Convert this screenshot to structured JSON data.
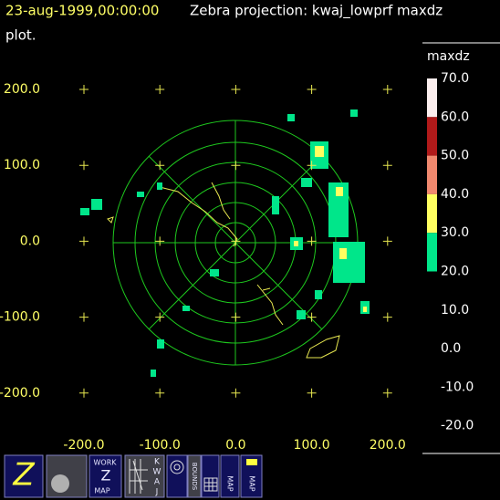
{
  "header": {
    "time": "23-aug-1999,00:00:00",
    "title": "Zebra projection: kwaj_lowprf maxdz",
    "title_cont": "plot."
  },
  "x_labels": [
    "-200.0",
    "-100.0",
    "0.0",
    "100.0",
    "200.0"
  ],
  "y_labels": [
    "200.0",
    "100.0",
    "0.0",
    "-100.0",
    "-200.0"
  ],
  "colorbar": {
    "field": "maxdz",
    "labels": [
      "70.0",
      "60.0",
      "50.0",
      "40.0",
      "30.0",
      "20.0",
      "10.0",
      "0.0",
      "-10.0",
      "-20.0"
    ],
    "colors": [
      "#fbeeee",
      "#b01a1a",
      "#f0886e",
      "#ffff60",
      "#00e68a"
    ]
  },
  "toolbar": {
    "z": "Z",
    "work": "WORK",
    "work_z": "Z",
    "work_map": "MAP",
    "kwaj": [
      "K",
      "W",
      "A",
      "J"
    ],
    "bounds": "BOUNDS",
    "map1": "MAP",
    "map2": "MAP"
  }
}
